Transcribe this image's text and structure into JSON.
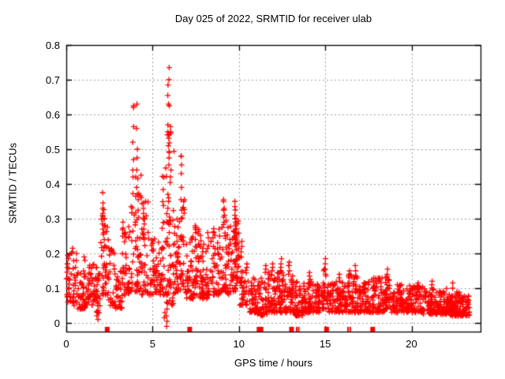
{
  "chart_data": {
    "type": "scatter",
    "title": "Day 025 of 2022, SRMTID for receiver ulab",
    "xlabel": "GPS time / hours",
    "ylabel": "SRMTID / TECUs",
    "xlim": [
      0,
      24
    ],
    "ylim": [
      -0.025,
      0.8
    ],
    "grid": true,
    "legend_position": "none",
    "background_color": "#ffffff",
    "border_color": "#000000",
    "grid_color": "#a0a0a0",
    "xticks": {
      "values": [
        0,
        5,
        10,
        15,
        20
      ],
      "labels": [
        "0",
        "5",
        "10",
        "15",
        "20"
      ]
    },
    "yticks": {
      "values": [
        0,
        0.1,
        0.2,
        0.3,
        0.4,
        0.5,
        0.6,
        0.7,
        0.8
      ],
      "labels": [
        "0",
        "0.1",
        "0.2",
        "0.3",
        "0.4",
        "0.5",
        "0.6",
        "0.7",
        "0.8"
      ]
    },
    "series": [
      {
        "name": "srmtid-points",
        "marker": "plus",
        "color": "#ff0000",
        "seed": 1337,
        "density_bins": [
          [
            0.0,
            0.35,
            26,
            0.06,
            0.21,
            1.4
          ],
          [
            0.35,
            0.65,
            24,
            0.05,
            0.22,
            1.5
          ],
          [
            0.65,
            1.15,
            44,
            0.04,
            0.17,
            1.5
          ],
          [
            1.15,
            1.65,
            40,
            0.05,
            0.17,
            1.5
          ],
          [
            1.65,
            2.0,
            30,
            0.02,
            0.16,
            1.3
          ],
          [
            2.0,
            2.45,
            40,
            0.08,
            0.33,
            1.4
          ],
          [
            2.45,
            2.85,
            28,
            0.05,
            0.22,
            1.6
          ],
          [
            2.85,
            3.25,
            30,
            0.04,
            0.16,
            1.4
          ],
          [
            3.25,
            3.65,
            40,
            0.08,
            0.3,
            1.5
          ],
          [
            3.65,
            4.35,
            64,
            0.09,
            0.45,
            1.7
          ],
          [
            4.35,
            4.75,
            34,
            0.08,
            0.35,
            1.8
          ],
          [
            4.75,
            5.55,
            60,
            0.08,
            0.25,
            1.5
          ],
          [
            5.55,
            5.85,
            30,
            0.08,
            0.45,
            1.6
          ],
          [
            5.85,
            6.25,
            50,
            0.05,
            0.55,
            1.6
          ],
          [
            6.25,
            6.6,
            34,
            0.08,
            0.3,
            1.5
          ],
          [
            6.6,
            6.9,
            26,
            0.09,
            0.36,
            1.5
          ],
          [
            6.9,
            7.35,
            40,
            0.07,
            0.25,
            1.5
          ],
          [
            7.35,
            7.75,
            38,
            0.08,
            0.28,
            1.6
          ],
          [
            7.75,
            8.45,
            60,
            0.07,
            0.26,
            1.5
          ],
          [
            8.45,
            9.0,
            52,
            0.08,
            0.28,
            1.5
          ],
          [
            9.0,
            9.3,
            28,
            0.09,
            0.31,
            1.4
          ],
          [
            9.3,
            9.65,
            30,
            0.08,
            0.28,
            1.5
          ],
          [
            9.65,
            10.05,
            40,
            0.09,
            0.3,
            1.3
          ],
          [
            10.05,
            10.55,
            38,
            0.05,
            0.18,
            1.5
          ],
          [
            10.55,
            11.05,
            42,
            0.03,
            0.13,
            1.4
          ],
          [
            11.05,
            11.65,
            52,
            0.02,
            0.13,
            1.4
          ],
          [
            11.65,
            12.15,
            48,
            0.03,
            0.15,
            1.5
          ],
          [
            12.15,
            12.65,
            48,
            0.03,
            0.15,
            1.5
          ],
          [
            12.65,
            13.15,
            48,
            0.03,
            0.14,
            1.5
          ],
          [
            13.15,
            13.7,
            50,
            0.02,
            0.12,
            1.4
          ],
          [
            13.7,
            14.45,
            66,
            0.03,
            0.13,
            1.5
          ],
          [
            14.45,
            14.9,
            40,
            0.03,
            0.12,
            1.4
          ],
          [
            14.9,
            15.2,
            27,
            0.04,
            0.16,
            1.4
          ],
          [
            15.2,
            16.25,
            92,
            0.03,
            0.12,
            1.4
          ],
          [
            16.25,
            16.95,
            62,
            0.03,
            0.14,
            1.4
          ],
          [
            16.95,
            17.65,
            62,
            0.03,
            0.12,
            1.4
          ],
          [
            17.65,
            18.45,
            70,
            0.03,
            0.13,
            1.4
          ],
          [
            18.45,
            18.85,
            36,
            0.04,
            0.14,
            1.4
          ],
          [
            18.85,
            19.85,
            88,
            0.03,
            0.11,
            1.4
          ],
          [
            19.85,
            20.65,
            70,
            0.03,
            0.11,
            1.4
          ],
          [
            20.65,
            21.45,
            70,
            0.025,
            0.1,
            1.4
          ],
          [
            21.45,
            22.25,
            70,
            0.025,
            0.1,
            1.4
          ],
          [
            22.25,
            22.85,
            64,
            0.02,
            0.09,
            1.4
          ],
          [
            22.85,
            23.35,
            52,
            0.02,
            0.08,
            1.4
          ]
        ],
        "columns": [
          {
            "x": 0.1,
            "ys": [
              0.195,
              0.185
            ]
          },
          {
            "x": 0.38,
            "ys": [
              0.215,
              0.205
            ]
          },
          {
            "x": 1.05,
            "ys": [
              0.19,
              0.18
            ]
          },
          {
            "x": 1.82,
            "ys": [
              0.01,
              0.03,
              0.05,
              0.07,
              0.09,
              0.11
            ]
          },
          {
            "x": 2.12,
            "ys": [
              0.375,
              0.345,
              0.33,
              0.315,
              0.3,
              0.285,
              0.27,
              0.255
            ]
          },
          {
            "x": 2.2,
            "ys": [
              0.3,
              0.28,
              0.26,
              0.24,
              0.22
            ]
          },
          {
            "x": 3.88,
            "ys": [
              0.625,
              0.62,
              0.565,
              0.52,
              0.47,
              0.44,
              0.42
            ]
          },
          {
            "x": 4.1,
            "ys": [
              0.63,
              0.56,
              0.5,
              0.475,
              0.44,
              0.39,
              0.37
            ]
          },
          {
            "x": 4.5,
            "ys": [
              0.345,
              0.33,
              0.315,
              0.3,
              0.285,
              0.27,
              0.255,
              0.24
            ]
          },
          {
            "x": 5.7,
            "ys": [
              0.03,
              0.015
            ]
          },
          {
            "x": 5.82,
            "ys": [
              -0.01,
              0.005,
              0.02,
              0.04,
              0.06,
              0.08
            ]
          },
          {
            "x": 5.9,
            "ys": [
              0.685,
              0.655,
              0.63,
              0.57,
              0.55,
              0.51,
              0.37,
              0.35,
              0.33
            ]
          },
          {
            "x": 5.97,
            "ys": [
              0.735,
              0.7,
              0.625,
              0.49,
              0.475,
              0.455,
              0.305,
              0.295
            ]
          },
          {
            "x": 6.05,
            "ys": [
              0.565,
              0.55,
              0.44,
              0.42
            ]
          },
          {
            "x": 6.67,
            "ys": [
              0.48,
              0.48,
              0.455,
              0.43,
              0.39,
              0.355,
              0.325,
              0.3
            ]
          },
          {
            "x": 7.5,
            "ys": [
              0.28,
              0.26,
              0.24,
              0.22
            ]
          },
          {
            "x": 8.2,
            "ys": [
              0.26,
              0.245
            ]
          },
          {
            "x": 9.1,
            "ys": [
              0.355,
              0.35,
              0.325,
              0.325,
              0.305
            ]
          },
          {
            "x": 9.17,
            "ys": [
              0.33,
              0.31,
              0.29
            ]
          },
          {
            "x": 9.78,
            "ys": [
              0.35,
              0.335,
              0.325,
              0.31,
              0.3,
              0.29,
              0.28,
              0.27,
              0.26,
              0.25,
              0.24,
              0.23,
              0.22
            ]
          },
          {
            "x": 9.86,
            "ys": [
              0.3,
              0.285,
              0.27,
              0.255,
              0.24,
              0.225,
              0.21
            ]
          },
          {
            "x": 10.15,
            "ys": [
              0.235,
              0.22,
              0.205,
              0.19
            ]
          },
          {
            "x": 11.55,
            "ys": [
              0.165,
              0.155,
              0.145
            ]
          },
          {
            "x": 11.95,
            "ys": [
              0.17,
              0.16,
              0.15
            ]
          },
          {
            "x": 12.45,
            "ys": [
              0.185,
              0.17,
              0.16,
              0.15
            ]
          },
          {
            "x": 12.9,
            "ys": [
              0.175,
              0.165,
              0.165,
              0.15,
              0.14
            ]
          },
          {
            "x": 14.1,
            "ys": [
              0.145,
              0.135,
              0.125
            ]
          },
          {
            "x": 15.0,
            "ys": [
              0.185,
              0.17,
              0.155,
              0.14
            ]
          },
          {
            "x": 15.8,
            "ys": [
              0.14,
              0.13
            ]
          },
          {
            "x": 16.4,
            "ys": [
              0.15,
              0.14,
              0.13
            ]
          },
          {
            "x": 16.75,
            "ys": [
              0.165,
              0.15,
              0.135
            ]
          },
          {
            "x": 18.6,
            "ys": [
              0.155,
              0.14,
              0.125,
              0.11
            ]
          },
          {
            "x": 20.4,
            "ys": [
              0.115,
              0.105
            ]
          },
          {
            "x": 21.2,
            "ys": [
              0.12,
              0.11,
              0.1
            ]
          },
          {
            "x": 22.4,
            "ys": [
              0.115,
              0.1
            ]
          }
        ]
      },
      {
        "name": "baseline-squares",
        "marker": "square",
        "color": "#ff0000",
        "y": -0.018,
        "x": [
          2.37,
          7.15,
          11.17,
          11.28,
          13.05,
          15.08,
          17.75
        ]
      },
      {
        "name": "baseline-bars",
        "marker": "vbar",
        "color": "#ff0000",
        "y": -0.018,
        "x": [
          13.35,
          13.47,
          16.32,
          16.45
        ]
      }
    ]
  }
}
